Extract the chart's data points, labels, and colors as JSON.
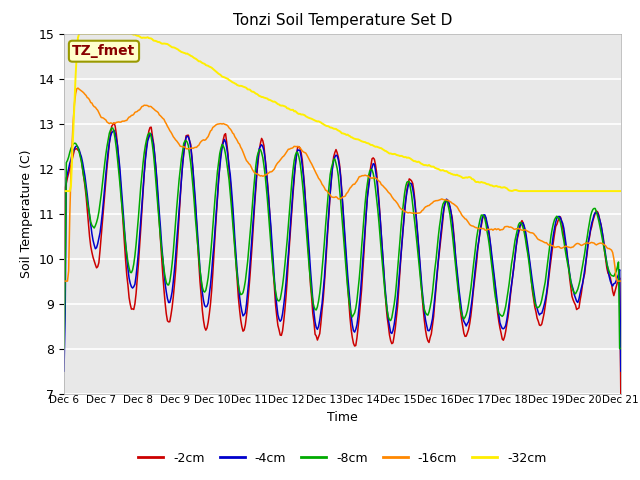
{
  "title": "Tonzi Soil Temperature Set D",
  "ylabel": "Soil Temperature (C)",
  "xlabel": "Time",
  "annotation": "TZ_fmet",
  "ylim": [
    7.0,
    15.0
  ],
  "yticks": [
    7.0,
    8.0,
    9.0,
    10.0,
    11.0,
    12.0,
    13.0,
    14.0,
    15.0
  ],
  "xtick_labels": [
    "Dec 6",
    "Dec 7",
    "Dec 8",
    "Dec 9",
    "Dec 10",
    "Dec 11",
    "Dec 12",
    "Dec 13",
    "Dec 14",
    "Dec 15",
    "Dec 16",
    "Dec 17",
    "Dec 18",
    "Dec 19",
    "Dec 20",
    "Dec 21"
  ],
  "colors": {
    "-2cm": "#cc0000",
    "-4cm": "#0000cc",
    "-8cm": "#00aa00",
    "-16cm": "#ff8800",
    "-32cm": "#ffee00"
  },
  "legend_labels": [
    "-2cm",
    "-4cm",
    "-8cm",
    "-16cm",
    "-32cm"
  ],
  "plot_bg": "#e8e8e8",
  "n_points": 480
}
